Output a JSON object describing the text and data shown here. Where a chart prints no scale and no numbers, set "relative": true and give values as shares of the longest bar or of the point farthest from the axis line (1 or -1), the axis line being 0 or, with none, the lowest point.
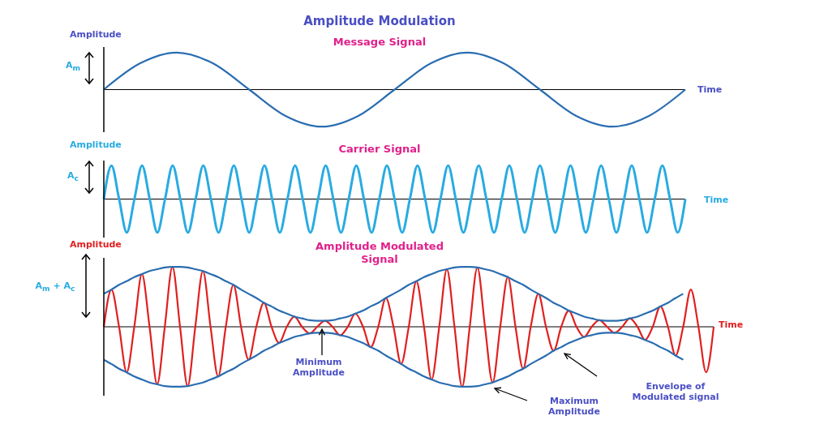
{
  "chart_data": [
    {
      "type": "line",
      "title": "Amplitude Modulation",
      "subtitle": "Message Signal",
      "xlabel": "Time",
      "ylabel": "Amplitude",
      "relative": true,
      "marker": "none",
      "annotations": [
        "A$_{m}$"
      ],
      "categories": [
        null,
        null,
        null,
        null,
        null,
        null,
        null,
        null,
        null,
        null,
        null,
        null,
        null,
        null,
        null,
        null,
        null
      ],
      "series": [
        {
          "color": "#2a6db0",
          "values": [
            0,
            0.71,
            1,
            0.71,
            0,
            -0.71,
            -1,
            -0.71,
            0,
            0.71,
            1,
            0.71,
            0,
            -0.71,
            -1,
            -0.71,
            0
          ]
        }
      ]
    },
    {
      "type": "line",
      "title": "Carrier Signal",
      "xlabel": "Time",
      "ylabel": "Amplitude",
      "relative": true,
      "marker": "none",
      "annotations": [
        "A$_{c}$"
      ],
      "categories": [
        null,
        null,
        null,
        null,
        null,
        null,
        null,
        null,
        null,
        null,
        null,
        null,
        null,
        null,
        null,
        null,
        null,
        null,
        null,
        null,
        null,
        null,
        null,
        null,
        null,
        null,
        null,
        null,
        null,
        null,
        null,
        null,
        null,
        null,
        null,
        null,
        null,
        null,
        null,
        null,
        null,
        null,
        null,
        null,
        null,
        null,
        null,
        null,
        null,
        null,
        null,
        null,
        null,
        null,
        null,
        null,
        null,
        null,
        null,
        null,
        null,
        null,
        null,
        null,
        null,
        null,
        null,
        null,
        null,
        null,
        null,
        null,
        null,
        null,
        null,
        null,
        null
      ],
      "series": [
        {
          "color": "#29abe2",
          "values": [
            0,
            1,
            0,
            -1,
            0,
            1,
            0,
            -1,
            0,
            1,
            0,
            -1,
            0,
            1,
            0,
            -1,
            0,
            1,
            0,
            -1,
            0,
            1,
            0,
            -1,
            0,
            1,
            0,
            -1,
            0,
            1,
            0,
            -1,
            0,
            1,
            0,
            -1,
            0,
            1,
            0,
            -1,
            0,
            1,
            0,
            -1,
            0,
            1,
            0,
            -1,
            0,
            1,
            0,
            -1,
            0,
            1,
            0,
            -1,
            0,
            1,
            0,
            -1,
            0,
            1,
            0,
            -1,
            0,
            1,
            0,
            -1,
            0,
            1,
            0,
            -1,
            0,
            1,
            0,
            -1,
            0
          ]
        }
      ]
    },
    {
      "type": "line",
      "title": "Amplitude Modulated Signal",
      "xlabel": "Time",
      "ylabel": "Amplitude",
      "relative": true,
      "marker": "none",
      "annotations": [
        "A$_{m}$ + A$_{c}$",
        "Minimum Amplitude",
        "Envelope of Modulated signal",
        "Maximum Amplitude"
      ],
      "categories": [
        null,
        null,
        null,
        null,
        null,
        null,
        null,
        null,
        null,
        null,
        null,
        null,
        null,
        null,
        null,
        null,
        null,
        null,
        null,
        null,
        null,
        null,
        null,
        null,
        null,
        null,
        null,
        null,
        null,
        null,
        null,
        null,
        null,
        null,
        null,
        null,
        null,
        null,
        null,
        null,
        null,
        null,
        null,
        null,
        null,
        null,
        null,
        null,
        null,
        null,
        null,
        null,
        null,
        null,
        null,
        null,
        null,
        null,
        null,
        null,
        null,
        null,
        null,
        null,
        null,
        null,
        null,
        null,
        null,
        null,
        null,
        null,
        null,
        null,
        null,
        null,
        null,
        null,
        null,
        null,
        null
      ],
      "series": [
        {
          "color": "#e02020",
          "values": [
            0,
            0.62,
            0,
            -0.76,
            0,
            0.88,
            0,
            -0.96,
            0,
            1.0,
            0,
            -0.99,
            0,
            0.93,
            0,
            -0.83,
            0,
            0.7,
            0,
            -0.55,
            0,
            0.4,
            0,
            -0.27,
            0,
            0.17,
            0,
            -0.11,
            0,
            0.1,
            0,
            -0.14,
            0,
            0.22,
            0,
            -0.34,
            0,
            0.48,
            0,
            -0.62,
            0,
            0.76,
            0,
            -0.88,
            0,
            0.96,
            0,
            -1.0,
            0,
            0.99,
            0,
            -0.93,
            0,
            0.83,
            0,
            -0.7,
            0,
            0.55,
            0,
            -0.4,
            0,
            0.27,
            0,
            -0.17,
            0,
            0.11,
            0,
            -0.1,
            0,
            0.14,
            0,
            -0.22,
            0,
            0.34,
            0,
            -0.48,
            0,
            0.62,
            0,
            -0.76,
            0
          ]
        },
        {
          "color": "#2a6db0",
          "values": [
            0.55,
            0.62,
            0.7,
            0.76,
            0.83,
            0.88,
            0.93,
            0.96,
            0.99,
            1.0,
            1.0,
            0.99,
            0.96,
            0.93,
            0.88,
            0.83,
            0.76,
            0.7,
            0.62,
            0.55,
            0.48,
            0.4,
            0.34,
            0.27,
            0.22,
            0.17,
            0.14,
            0.11,
            0.1,
            0.1,
            0.11,
            0.14,
            0.17,
            0.22,
            0.27,
            0.34,
            0.4,
            0.48,
            0.55,
            0.62,
            0.7,
            0.76,
            0.83,
            0.88,
            0.93,
            0.96,
            0.99,
            1.0,
            1.0,
            0.99,
            0.96,
            0.93,
            0.88,
            0.83,
            0.76,
            0.7,
            0.62,
            0.55,
            0.48,
            0.4,
            0.34,
            0.27,
            0.22,
            0.17,
            0.14,
            0.11,
            0.1,
            0.1,
            0.11,
            0.14,
            0.17,
            0.22,
            0.27,
            0.34,
            0.4,
            0.48,
            0.55,
            null,
            null,
            null,
            null
          ]
        },
        {
          "color": "#2a6db0",
          "values": [
            -0.55,
            -0.62,
            -0.7,
            -0.76,
            -0.83,
            -0.88,
            -0.93,
            -0.96,
            -0.99,
            -1.0,
            -1.0,
            -0.99,
            -0.96,
            -0.93,
            -0.88,
            -0.83,
            -0.76,
            -0.7,
            -0.62,
            -0.55,
            -0.48,
            -0.4,
            -0.34,
            -0.27,
            -0.22,
            -0.17,
            -0.14,
            -0.11,
            -0.1,
            -0.1,
            -0.11,
            -0.14,
            -0.17,
            -0.22,
            -0.27,
            -0.34,
            -0.4,
            -0.48,
            -0.55,
            -0.62,
            -0.7,
            -0.76,
            -0.83,
            -0.88,
            -0.93,
            -0.96,
            -0.99,
            -1.0,
            -1.0,
            -0.99,
            -0.96,
            -0.93,
            -0.88,
            -0.83,
            -0.76,
            -0.7,
            -0.62,
            -0.55,
            -0.48,
            -0.4,
            -0.34,
            -0.27,
            -0.22,
            -0.17,
            -0.14,
            -0.11,
            -0.1,
            -0.1,
            -0.11,
            -0.14,
            -0.17,
            -0.22,
            -0.27,
            -0.34,
            -0.4,
            -0.48,
            -0.55,
            null,
            null,
            null,
            null
          ]
        }
      ]
    }
  ]
}
